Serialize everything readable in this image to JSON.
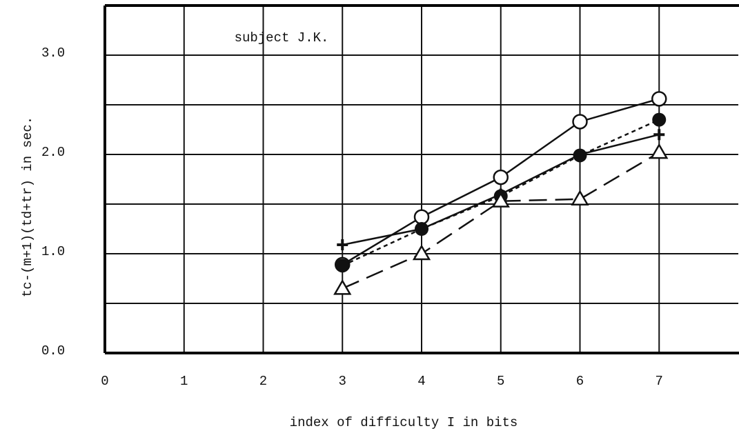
{
  "chart_data": {
    "type": "line",
    "annotation": "subject J.K.",
    "xlabel": "index of difficulty I in bits",
    "ylabel": "tc-(m+1)(td+tr) in sec.",
    "x": [
      3,
      4,
      5,
      6,
      7
    ],
    "xlim": [
      0,
      8
    ],
    "xticks": [
      0,
      1,
      2,
      3,
      4,
      5,
      6,
      7
    ],
    "ylim": [
      0,
      3.5
    ],
    "yticks": [
      {
        "value": 0,
        "label": "0.0"
      },
      {
        "value": 1,
        "label": "1.0"
      },
      {
        "value": 2,
        "label": "2.0"
      },
      {
        "value": 3,
        "label": "3.0"
      }
    ],
    "yticks_minor": [
      0.5,
      1.5,
      2.5
    ],
    "grid": true,
    "series": [
      {
        "color": "#111",
        "marker": "open-circle",
        "dash": "solid",
        "values": [
          0.89,
          1.37,
          1.77,
          2.33,
          2.56
        ]
      },
      {
        "color": "#111",
        "marker": "filled-circle",
        "dash": "short",
        "values": [
          0.88,
          1.25,
          1.58,
          1.99,
          2.35
        ]
      },
      {
        "color": "#111",
        "marker": "plus",
        "dash": "solid",
        "values": [
          1.09,
          1.25,
          1.6,
          2.0,
          2.2
        ]
      },
      {
        "color": "#111",
        "marker": "open-triangle",
        "dash": "long",
        "values": [
          0.65,
          1.0,
          1.53,
          1.55,
          2.02
        ]
      }
    ]
  }
}
